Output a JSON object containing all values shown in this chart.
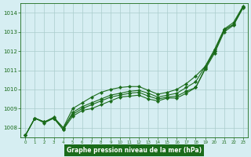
{
  "title": "Graphe pression niveau de la mer (hPa)",
  "x": [
    0,
    1,
    2,
    3,
    4,
    5,
    6,
    7,
    8,
    9,
    10,
    11,
    12,
    13,
    14,
    15,
    16,
    17,
    18,
    19,
    20,
    21,
    22,
    23
  ],
  "line1": [
    1007.6,
    1008.5,
    1008.3,
    1008.5,
    1007.9,
    1008.6,
    1008.9,
    1009.0,
    1009.2,
    1009.4,
    1009.6,
    1009.65,
    1009.7,
    1009.5,
    1009.4,
    1009.55,
    1009.55,
    1009.8,
    1010.1,
    1011.1,
    1012.0,
    1013.1,
    1013.4,
    1014.3
  ],
  "line2": [
    1007.6,
    1008.5,
    1008.3,
    1008.5,
    1007.9,
    1008.8,
    1009.1,
    1009.3,
    1009.5,
    1009.7,
    1009.8,
    1009.9,
    1009.95,
    1009.8,
    1009.6,
    1009.7,
    1009.8,
    1010.1,
    1010.4,
    1011.2,
    1012.0,
    1013.1,
    1013.4,
    1014.3
  ],
  "line3": [
    1007.6,
    1008.5,
    1008.3,
    1008.55,
    1008.0,
    1008.7,
    1009.0,
    1009.2,
    1009.4,
    1009.6,
    1009.7,
    1009.8,
    1009.85,
    1009.65,
    1009.5,
    1009.6,
    1009.65,
    1009.9,
    1010.1,
    1011.05,
    1011.9,
    1013.0,
    1013.35,
    1014.25
  ],
  "line4": [
    1007.6,
    1008.5,
    1008.25,
    1008.5,
    1008.0,
    1009.0,
    1009.3,
    1009.6,
    1009.85,
    1010.0,
    1010.1,
    1010.15,
    1010.15,
    1009.95,
    1009.75,
    1009.85,
    1010.0,
    1010.3,
    1010.7,
    1011.2,
    1012.1,
    1013.15,
    1013.5,
    1014.35
  ],
  "ylim": [
    1007.5,
    1014.5
  ],
  "yticks": [
    1008,
    1009,
    1010,
    1011,
    1012,
    1013,
    1014
  ],
  "xticks": [
    0,
    1,
    2,
    3,
    4,
    5,
    6,
    7,
    8,
    9,
    10,
    11,
    12,
    13,
    14,
    15,
    16,
    17,
    18,
    19,
    20,
    21,
    22,
    23
  ],
  "line_color": "#1a6b1a",
  "bg_color": "#d6eef2",
  "grid_color": "#aacccc",
  "title_color": "#1a6b1a"
}
